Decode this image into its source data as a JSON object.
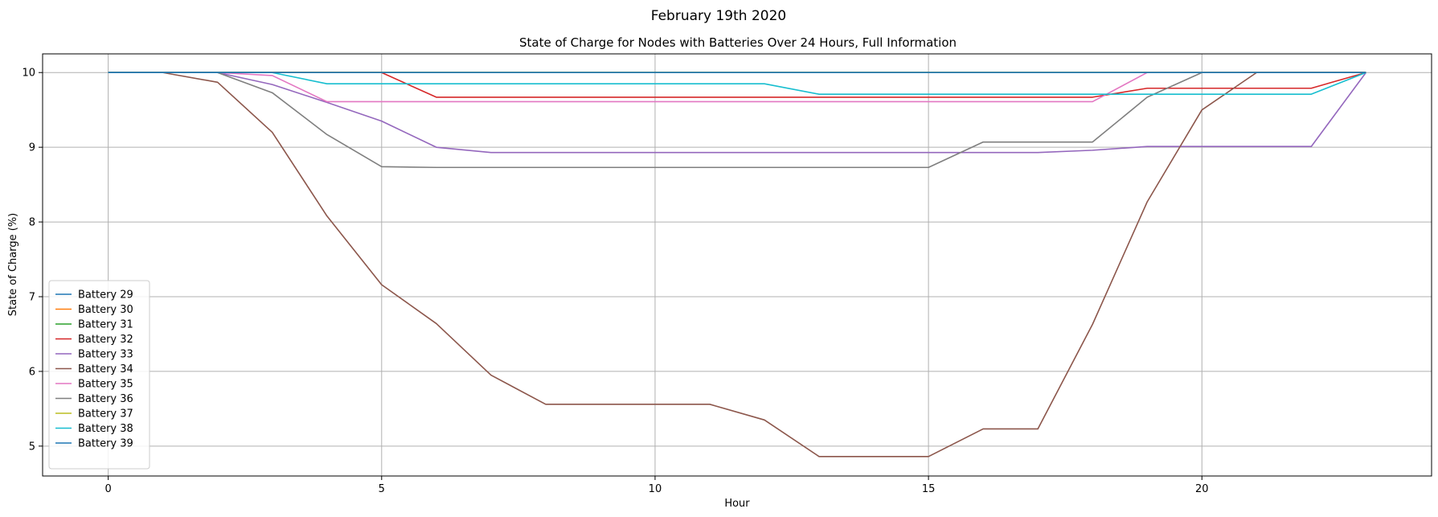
{
  "figure": {
    "suptitle": "February 19th 2020"
  },
  "chart_data": {
    "type": "line",
    "title": "State of Charge for Nodes with Batteries Over 24 Hours, Full Information",
    "xlabel": "Hour",
    "ylabel": "State of Charge (%)",
    "xlim": [
      -1.2,
      24.2
    ],
    "ylim": [
      4.6,
      10.25
    ],
    "xticks": [
      0,
      5,
      10,
      15,
      20
    ],
    "yticks": [
      5,
      6,
      7,
      8,
      9,
      10
    ],
    "grid": true,
    "legend_position": "lower-left",
    "x": [
      0,
      1,
      2,
      3,
      4,
      5,
      6,
      7,
      8,
      9,
      10,
      11,
      12,
      13,
      14,
      15,
      16,
      17,
      18,
      19,
      20,
      21,
      22,
      23
    ],
    "series": [
      {
        "name": "Battery 29",
        "color": "#1f77b4",
        "values": [
          10,
          10,
          10,
          10,
          10,
          10,
          10,
          10,
          10,
          10,
          10,
          10,
          10,
          10,
          10,
          10,
          10,
          10,
          10,
          10,
          10,
          10,
          10,
          10
        ]
      },
      {
        "name": "Battery 30",
        "color": "#ff7f0e",
        "values": [
          10,
          10,
          10,
          10,
          10,
          10,
          10,
          10,
          10,
          10,
          10,
          10,
          10,
          10,
          10,
          10,
          10,
          10,
          10,
          10,
          10,
          10,
          10,
          10
        ]
      },
      {
        "name": "Battery 31",
        "color": "#2ca02c",
        "values": [
          10,
          10,
          10,
          10,
          10,
          10,
          10,
          10,
          10,
          10,
          10,
          10,
          10,
          10,
          10,
          10,
          10,
          10,
          10,
          10,
          10,
          10,
          10,
          10
        ]
      },
      {
        "name": "Battery 32",
        "color": "#d62728",
        "values": [
          10,
          10,
          10,
          10,
          10,
          10,
          9.67,
          9.67,
          9.67,
          9.67,
          9.67,
          9.67,
          9.67,
          9.67,
          9.67,
          9.67,
          9.67,
          9.67,
          9.67,
          9.79,
          9.79,
          9.79,
          9.79,
          10
        ]
      },
      {
        "name": "Battery 33",
        "color": "#9467bd",
        "values": [
          10,
          10,
          10,
          9.84,
          9.6,
          9.35,
          9.0,
          8.93,
          8.93,
          8.93,
          8.93,
          8.93,
          8.93,
          8.93,
          8.93,
          8.93,
          8.93,
          8.93,
          8.96,
          9.01,
          9.01,
          9.01,
          9.01,
          10
        ]
      },
      {
        "name": "Battery 34",
        "color": "#8c564b",
        "values": [
          10,
          10,
          9.87,
          9.2,
          8.08,
          7.16,
          6.64,
          5.95,
          5.56,
          5.56,
          5.56,
          5.56,
          5.35,
          4.86,
          4.86,
          4.86,
          5.23,
          5.23,
          6.63,
          8.27,
          9.5,
          10,
          10,
          10
        ]
      },
      {
        "name": "Battery 35",
        "color": "#e377c2",
        "values": [
          10,
          10,
          10,
          9.96,
          9.61,
          9.61,
          9.61,
          9.61,
          9.61,
          9.61,
          9.61,
          9.61,
          9.61,
          9.61,
          9.61,
          9.61,
          9.61,
          9.61,
          9.61,
          10,
          10,
          10,
          10,
          10
        ]
      },
      {
        "name": "Battery 36",
        "color": "#7f7f7f",
        "values": [
          10,
          10,
          10,
          9.73,
          9.17,
          8.74,
          8.73,
          8.73,
          8.73,
          8.73,
          8.73,
          8.73,
          8.73,
          8.73,
          8.73,
          8.73,
          9.07,
          9.07,
          9.07,
          9.67,
          10,
          10,
          10,
          10
        ]
      },
      {
        "name": "Battery 37",
        "color": "#bcbd22",
        "values": [
          10,
          10,
          10,
          10,
          10,
          10,
          10,
          10,
          10,
          10,
          10,
          10,
          10,
          10,
          10,
          10,
          10,
          10,
          10,
          10,
          10,
          10,
          10,
          10
        ]
      },
      {
        "name": "Battery 38",
        "color": "#17becf",
        "values": [
          10,
          10,
          10,
          10,
          9.85,
          9.85,
          9.85,
          9.85,
          9.85,
          9.85,
          9.85,
          9.85,
          9.85,
          9.71,
          9.71,
          9.71,
          9.71,
          9.71,
          9.71,
          9.71,
          9.71,
          9.71,
          9.71,
          10
        ]
      },
      {
        "name": "Battery 39",
        "color": "#1f77b4",
        "values": [
          10,
          10,
          10,
          10,
          10,
          10,
          10,
          10,
          10,
          10,
          10,
          10,
          10,
          10,
          10,
          10,
          10,
          10,
          10,
          10,
          10,
          10,
          10,
          10
        ]
      }
    ]
  }
}
